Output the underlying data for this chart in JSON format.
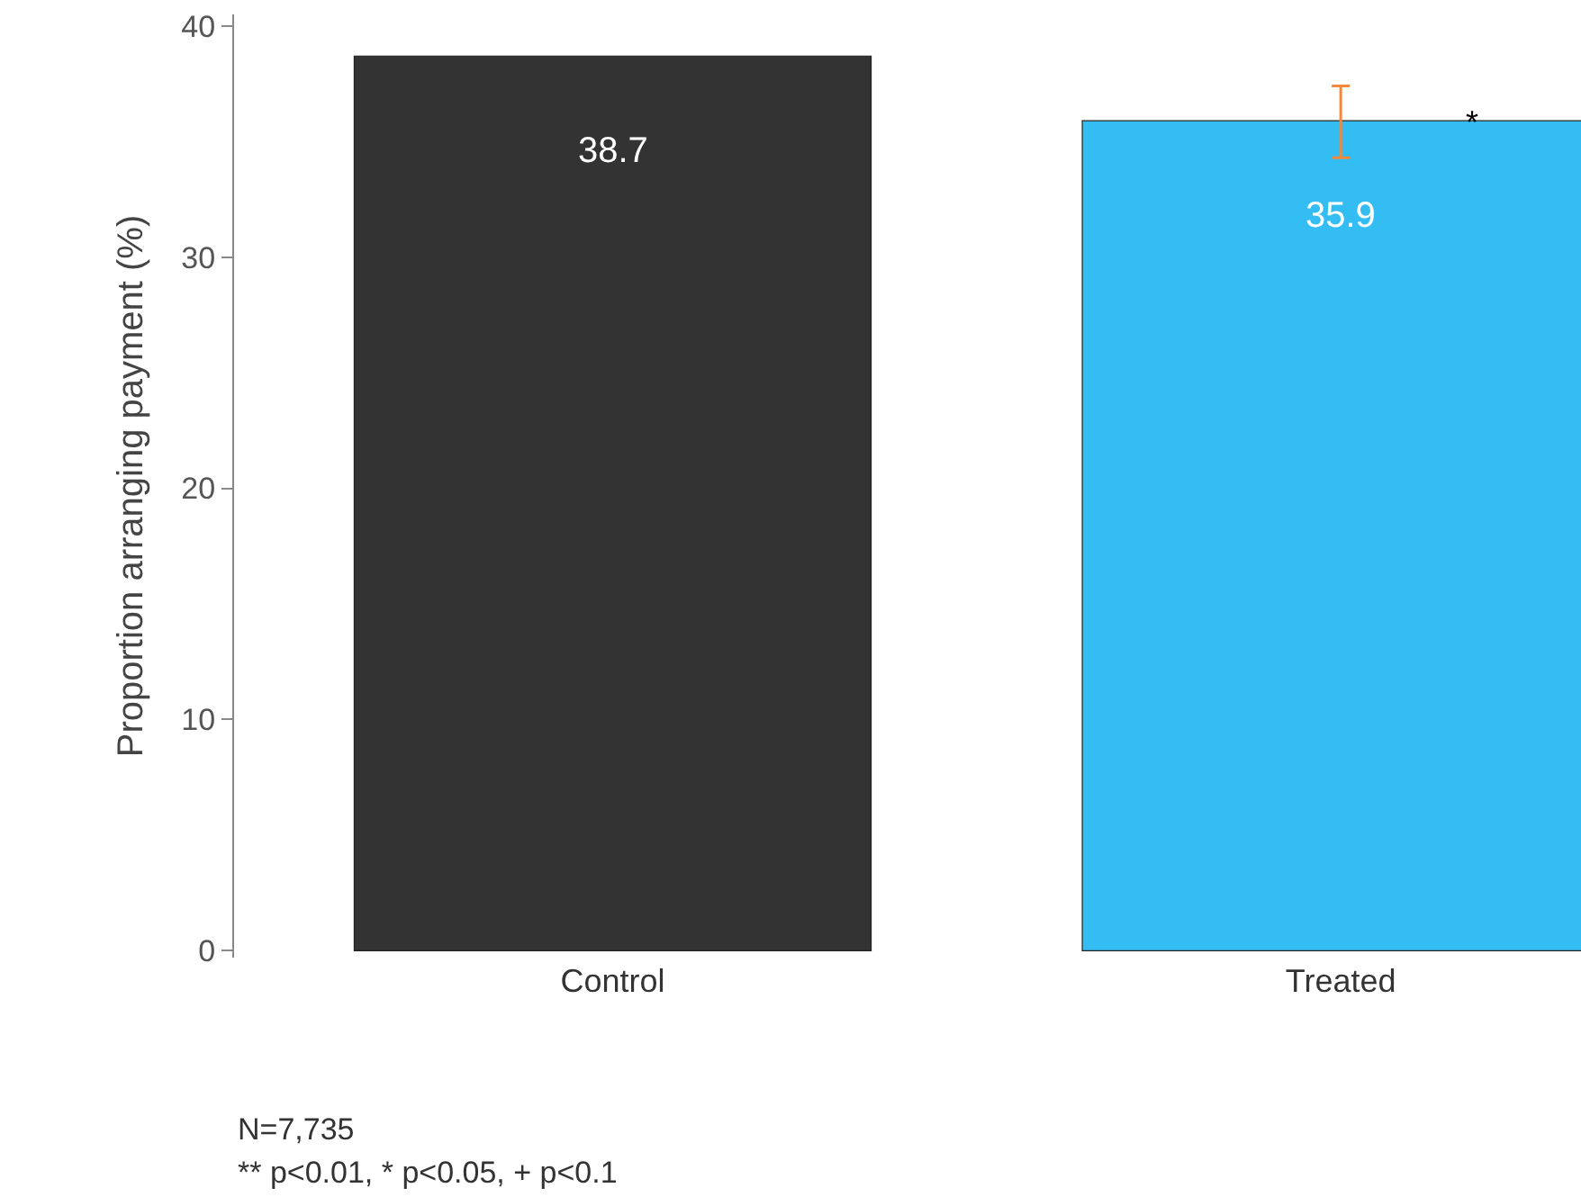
{
  "chart_data": {
    "type": "bar",
    "ylabel": "Proportion arranging payment (%)",
    "categories": [
      "Control",
      "Treated"
    ],
    "values": [
      38.7,
      35.9
    ],
    "colors": [
      "#333333",
      "#33bdf2"
    ],
    "errors": [
      null,
      [
        34.3,
        37.4
      ]
    ],
    "data_labels": true,
    "ylim": [
      -0.3,
      40.5
    ],
    "yticks": [
      0,
      10,
      20,
      30,
      40
    ],
    "annotations": [
      "*",
      "N=7,735",
      "** p<0.01, * p<0.05, + p<0.1"
    ]
  }
}
